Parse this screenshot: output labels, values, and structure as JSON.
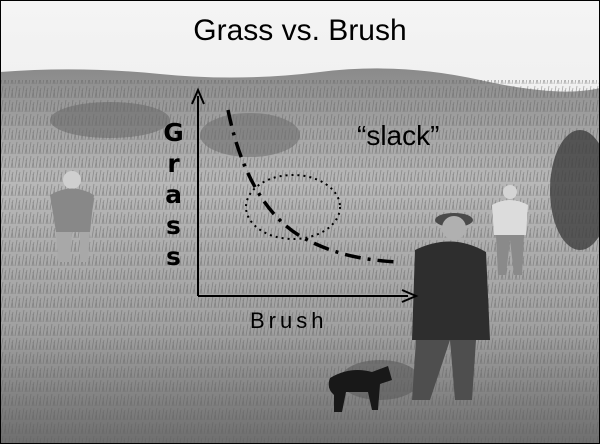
{
  "title": "Grass vs. Brush",
  "y_axis_label": "Grass",
  "x_axis_label": "Brush",
  "annotation": "“slack”"
}
